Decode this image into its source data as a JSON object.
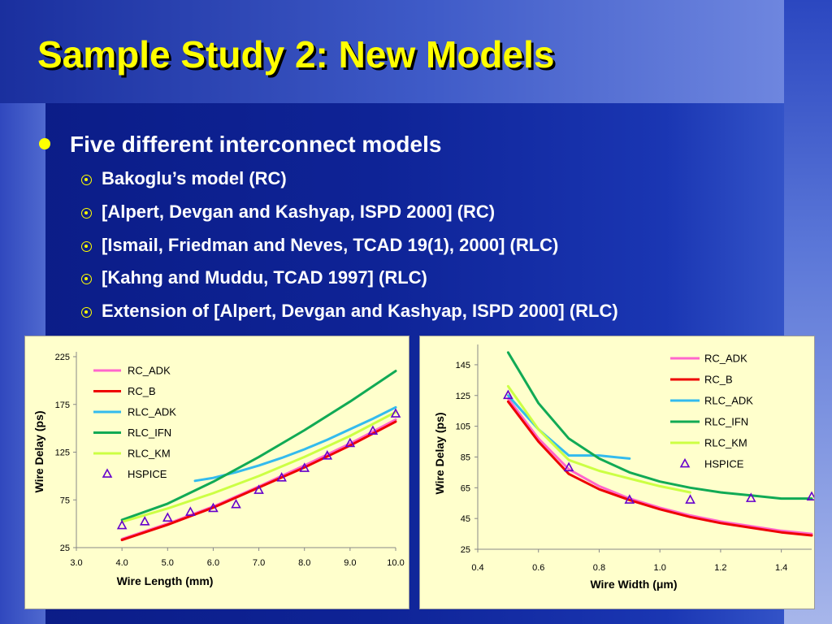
{
  "slide": {
    "title": "Sample Study 2: New Models",
    "bullet": "Five different interconnect models",
    "sub_items": [
      "Bakoglu’s model (RC)",
      "[Alpert, Devgan and Kashyap, ISPD 2000] (RC)",
      "[Ismail, Friedman and Neves, TCAD 19(1), 2000] (RLC)",
      "[Kahng and Muddu, TCAD 1997] (RLC)",
      "Extension of [Alpert, Devgan and Kashyap, ISPD 2000] (RLC)"
    ]
  },
  "colors": {
    "title": "#ffff00",
    "RC_ADK": "#ff66cc",
    "RC_B": "#ee0000",
    "RLC_ADK": "#33bbee",
    "RLC_IFN": "#11aa55",
    "RLC_KM": "#ccff44",
    "HSPICE": "#6600cc"
  },
  "chart_data": [
    {
      "type": "line",
      "xlabel": "Wire Length (mm)",
      "ylabel": "Wire Delay (ps)",
      "xlim": [
        3.0,
        10.0
      ],
      "ylim": [
        25,
        225
      ],
      "xticks": [
        "3.0",
        "4.0",
        "5.0",
        "6.0",
        "7.0",
        "8.0",
        "9.0",
        "10.0"
      ],
      "yticks": [
        "25",
        "75",
        "125",
        "175",
        "225"
      ],
      "legend_position": "top-left",
      "series": [
        {
          "name": "RC_ADK",
          "x": [
            4,
            5,
            6,
            7,
            8,
            9,
            10
          ],
          "y": [
            34,
            50,
            68,
            89,
            111,
            134,
            159
          ]
        },
        {
          "name": "RC_B",
          "x": [
            4,
            5,
            6,
            7,
            8,
            9,
            10
          ],
          "y": [
            33,
            49,
            67,
            88,
            109,
            132,
            157
          ]
        },
        {
          "name": "RLC_ADK",
          "x": [
            5.6,
            6,
            6.5,
            7,
            7.5,
            8,
            8.5,
            9,
            9.5,
            10
          ],
          "y": [
            95,
            98,
            104,
            111,
            119,
            128,
            138,
            149,
            160,
            172
          ]
        },
        {
          "name": "RLC_IFN",
          "x": [
            4,
            5,
            6,
            7,
            8,
            9,
            10
          ],
          "y": [
            54,
            71,
            94,
            120,
            148,
            178,
            210
          ]
        },
        {
          "name": "RLC_KM",
          "x": [
            4,
            5,
            6,
            7,
            8,
            9,
            10
          ],
          "y": [
            52,
            66,
            82,
            100,
            120,
            142,
            167
          ]
        },
        {
          "name": "HSPICE",
          "marker": "triangle",
          "x": [
            4.0,
            4.5,
            5.0,
            5.5,
            6.0,
            6.5,
            7.0,
            7.5,
            8.0,
            8.5,
            9.0,
            9.5,
            10.0
          ],
          "y": [
            48,
            52,
            56,
            62,
            66,
            70,
            85,
            98,
            108,
            121,
            134,
            147,
            165
          ]
        }
      ]
    },
    {
      "type": "line",
      "xlabel": "Wire Width (μm)",
      "ylabel": "Wire Delay (ps)",
      "xlim": [
        0.4,
        1.5
      ],
      "ylim": [
        25,
        155
      ],
      "xticks": [
        "0.4",
        "0.6",
        "0.8",
        "1.0",
        "1.2",
        "1.4"
      ],
      "yticks": [
        "25",
        "45",
        "65",
        "85",
        "105",
        "125",
        "145"
      ],
      "legend_position": "top-right",
      "series": [
        {
          "name": "RC_ADK",
          "x": [
            0.5,
            0.6,
            0.7,
            0.8,
            0.9,
            1.0,
            1.1,
            1.2,
            1.3,
            1.4,
            1.5
          ],
          "y": [
            123,
            97,
            77,
            66,
            58,
            52,
            47,
            43,
            40,
            37,
            35
          ]
        },
        {
          "name": "RC_B",
          "x": [
            0.5,
            0.6,
            0.7,
            0.8,
            0.9,
            1.0,
            1.1,
            1.2,
            1.3,
            1.4,
            1.5
          ],
          "y": [
            121,
            95,
            74,
            64,
            57,
            51,
            46,
            42,
            39,
            36,
            34
          ]
        },
        {
          "name": "RLC_ADK",
          "x": [
            0.5,
            0.6,
            0.7,
            0.8,
            0.9
          ],
          "y": [
            125,
            103,
            86,
            86,
            84
          ]
        },
        {
          "name": "RLC_IFN",
          "x": [
            0.5,
            0.6,
            0.7,
            0.8,
            0.9,
            1.0,
            1.1,
            1.2,
            1.3,
            1.4,
            1.5
          ],
          "y": [
            153,
            120,
            97,
            84,
            75,
            69,
            65,
            62,
            60,
            58,
            58
          ]
        },
        {
          "name": "RLC_KM",
          "x": [
            0.5,
            0.6,
            0.7,
            0.8,
            0.9,
            1.0,
            1.1
          ],
          "y": [
            131,
            103,
            83,
            76,
            71,
            66,
            62
          ]
        },
        {
          "name": "HSPICE",
          "marker": "triangle",
          "x": [
            0.5,
            0.7,
            0.9,
            1.1,
            1.3,
            1.5
          ],
          "y": [
            125,
            78,
            57,
            57,
            58,
            59
          ]
        }
      ]
    }
  ]
}
